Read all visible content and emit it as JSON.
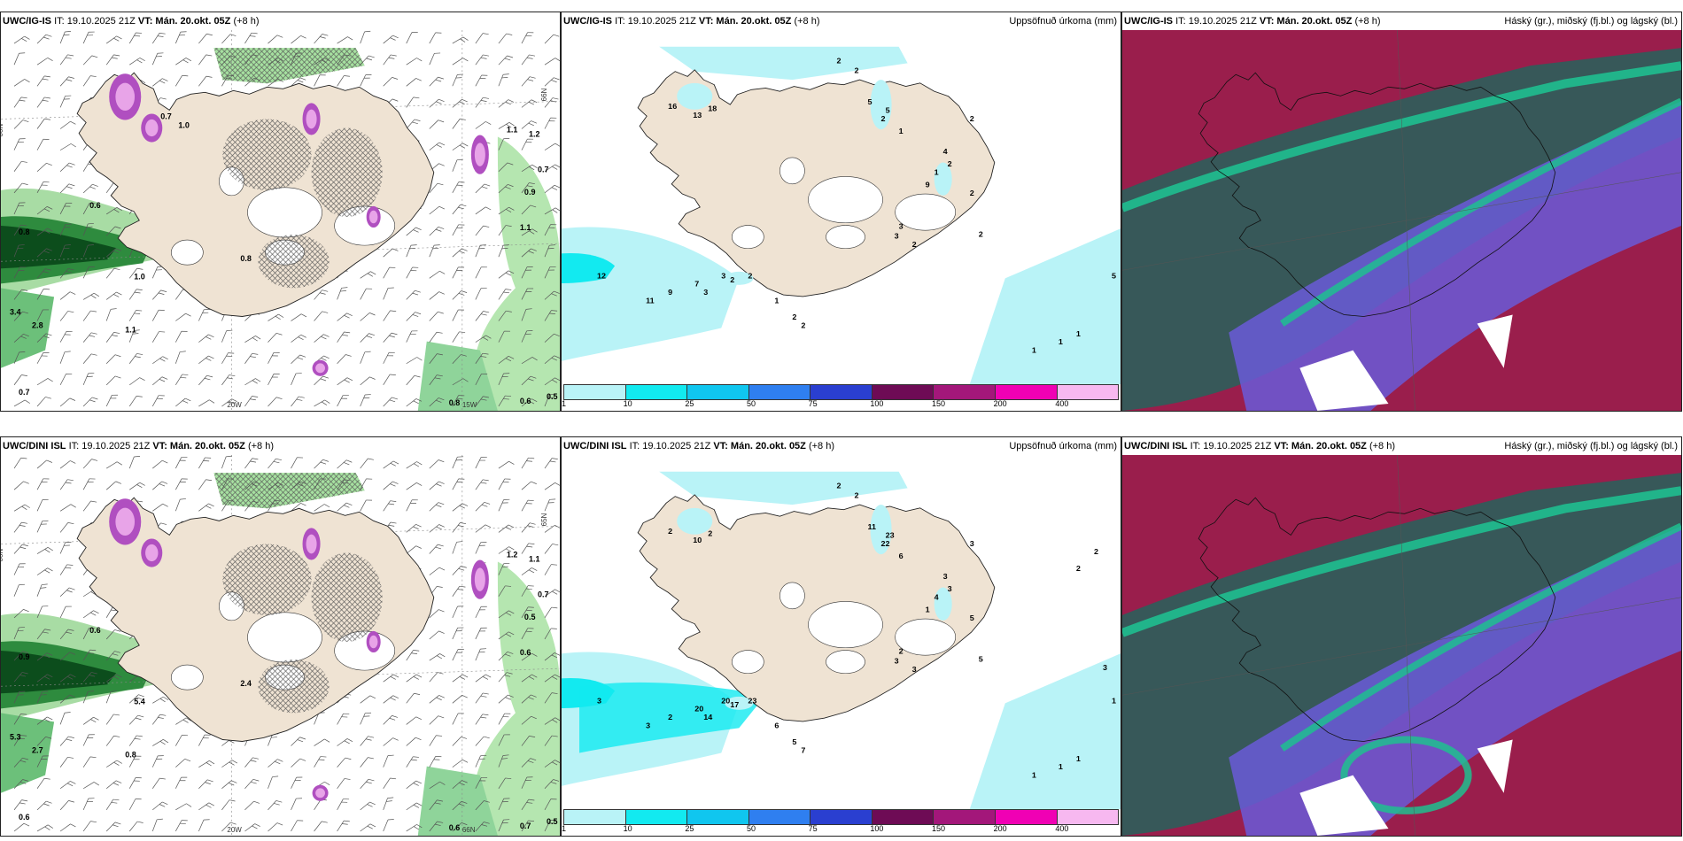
{
  "panels": [
    {
      "id": "p1",
      "header": {
        "model": "UWC/IG-IS",
        "it": "IT: 19.10.2025 21Z",
        "vt_label": "VT:",
        "vt": "Mán. 20.okt. 05Z",
        "lead": "(+8 h)",
        "right": ""
      },
      "axis_labels": [
        "66N",
        "20W",
        "15W",
        "66N"
      ],
      "value_labels": [
        "0.6",
        "0.8",
        "0.8",
        "1.0",
        "3.4",
        "2.8",
        "1.1",
        "0.7",
        "0.8",
        "0.6",
        "0.5",
        "0.7",
        "0.9",
        "1.1",
        "1.2",
        "1.1",
        "0.7",
        "1.0"
      ]
    },
    {
      "id": "p2",
      "header": {
        "model": "UWC/IG-IS",
        "it": "IT: 19.10.2025 21Z",
        "vt_label": "VT:",
        "vt": "Mán. 20.okt. 05Z",
        "lead": "(+8 h)",
        "right": "Uppsöfnuð úrkoma (mm)"
      },
      "value_labels": [
        "2",
        "2",
        "16",
        "18",
        "13",
        "5",
        "5",
        "2",
        "1",
        "1",
        "2",
        "4",
        "2",
        "9",
        "2",
        "2",
        "3",
        "3",
        "2",
        "12",
        "11",
        "9",
        "7",
        "3",
        "3",
        "2",
        "2",
        "1",
        "2",
        "2",
        "1",
        "1",
        "1",
        "5"
      ],
      "legend": [
        "1",
        "10",
        "25",
        "50",
        "75",
        "100",
        "150",
        "200",
        "400"
      ]
    },
    {
      "id": "p3",
      "header": {
        "model": "UWC/IG-IS",
        "it": "IT: 19.10.2025 21Z",
        "vt_label": "VT:",
        "vt": "Mán. 20.okt. 05Z",
        "lead": "(+8 h)",
        "right": "Háský (gr.), miðský (fj.bl.) og lágský (bl.)"
      }
    },
    {
      "id": "p4",
      "header": {
        "model": "UWC/DINI ISL",
        "it": "IT: 19.10.2025 21Z",
        "vt_label": "VT:",
        "vt": "Mán. 20.okt. 05Z",
        "lead": "(+8 h)",
        "right": ""
      },
      "axis_labels": [
        "66N",
        "20W",
        "66N",
        "65N"
      ],
      "value_labels": [
        "0.6",
        "0.9",
        "2.4",
        "5.4",
        "5.3",
        "2.7",
        "0.8",
        "0.6",
        "0.6",
        "0.7",
        "0.5",
        "0.7",
        "0.5",
        "0.6",
        "1.1",
        "1.2"
      ]
    },
    {
      "id": "p5",
      "header": {
        "model": "UWC/DINI ISL",
        "it": "IT: 19.10.2025 21Z",
        "vt_label": "VT:",
        "vt": "Mán. 20.okt. 05Z",
        "lead": "(+8 h)",
        "right": "Uppsöfnuð úrkoma (mm)"
      },
      "value_labels": [
        "2",
        "2",
        "2",
        "2",
        "10",
        "11",
        "23",
        "22",
        "6",
        "4",
        "3",
        "3",
        "3",
        "1",
        "5",
        "5",
        "2",
        "3",
        "3",
        "3",
        "3",
        "2",
        "20",
        "20",
        "14",
        "17",
        "23",
        "6",
        "5",
        "7",
        "1",
        "1",
        "1",
        "1",
        "3",
        "2",
        "2"
      ],
      "legend": [
        "1",
        "10",
        "25",
        "50",
        "75",
        "100",
        "150",
        "200",
        "400"
      ]
    },
    {
      "id": "p6",
      "header": {
        "model": "UWC/DINI ISL",
        "it": "IT: 19.10.2025 21Z",
        "vt_label": "VT:",
        "vt": "Mán. 20.okt. 05Z",
        "lead": "(+8 h)",
        "right": "Háský (gr.), miðský (fj.bl.) og lágský (bl.)"
      }
    }
  ],
  "colors": {
    "land": "#efe3d3",
    "precip_legend": [
      "#b9f3f7",
      "#12eaf0",
      "#10c6ef",
      "#2f7ff0",
      "#2a3fd0",
      "#6e0b55",
      "#a3177a",
      "#f000b4",
      "#f7b8f0"
    ],
    "high_cloud": "#1fbf8f",
    "mid_cloud": "#6a5ad8",
    "low_cloud": "#9a1e4c"
  }
}
